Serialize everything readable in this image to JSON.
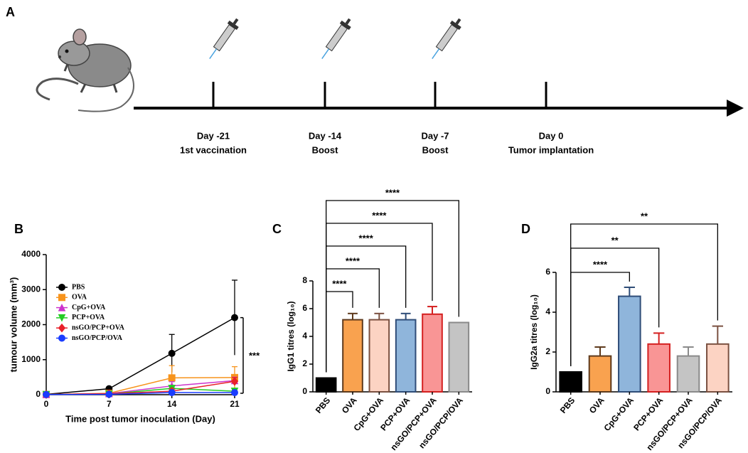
{
  "timeline": {
    "panel": "A",
    "events": [
      {
        "day": "Day -21",
        "label": "1st vaccination"
      },
      {
        "day": "Day -14",
        "label": "Boost"
      },
      {
        "day": "Day -7",
        "label": "Boost"
      },
      {
        "day": "Day 0",
        "label": "Tumor implantation"
      }
    ]
  },
  "chart_data": [
    {
      "type": "line",
      "panel": "B",
      "x_label": "Time post tumor inoculation (Day)",
      "y_label": "tumour volume (mm³)",
      "x": [
        0,
        7,
        14,
        21
      ],
      "xlim": [
        0,
        21
      ],
      "xticks": [
        0,
        7,
        14,
        21
      ],
      "ylim": [
        0,
        4000
      ],
      "yticks": [
        0,
        1000,
        2000,
        3000,
        4000
      ],
      "legend": "upper left",
      "annotation": "***",
      "series": [
        {
          "name": "PBS",
          "color": "#000000",
          "marker": "circle",
          "values": [
            10,
            170,
            1180,
            2200
          ],
          "errors": [
            0,
            0,
            540,
            1070
          ]
        },
        {
          "name": "OVA",
          "color": "#f7941d",
          "marker": "square",
          "values": [
            5,
            40,
            480,
            490
          ],
          "errors": [
            0,
            0,
            350,
            310
          ]
        },
        {
          "name": "CpG+OVA",
          "color": "#cc33cc",
          "marker": "triangle-up",
          "values": [
            5,
            30,
            250,
            400
          ],
          "errors": [
            0,
            0,
            120,
            100
          ]
        },
        {
          "name": "PCP+OVA",
          "color": "#22cc22",
          "marker": "triangle-down",
          "values": [
            5,
            20,
            180,
            100
          ],
          "errors": [
            0,
            0,
            60,
            40
          ]
        },
        {
          "name": "nsGO/PCP+OVA",
          "color": "#e8202a",
          "marker": "diamond",
          "values": [
            5,
            30,
            100,
            380
          ],
          "errors": [
            0,
            0,
            60,
            110
          ]
        },
        {
          "name": "nsGO/PCP/OVA",
          "color": "#1a3cff",
          "marker": "circle",
          "values": [
            5,
            10,
            60,
            60
          ],
          "errors": [
            0,
            0,
            30,
            30
          ]
        }
      ]
    },
    {
      "type": "bar",
      "panel": "C",
      "y_label": "IgG1 titres (log₁₀)",
      "categories": [
        "PBS",
        "OVA",
        "CpG+OVA",
        "PCP+OVA",
        "nsGO/PCP+OVA",
        "nsGO/PCP/OVA"
      ],
      "values": [
        1,
        5.2,
        5.2,
        5.2,
        5.6,
        5.0
      ],
      "errors": [
        0,
        0.45,
        0.45,
        0.45,
        0.55,
        0
      ],
      "colors": [
        "#000000",
        "#f9a24f",
        "#fcd3c3",
        "#8fb5db",
        "#f99595",
        "#c4c4c4"
      ],
      "edge_colors": [
        "#000000",
        "#5e3a1c",
        "#7a5040",
        "#2f4d78",
        "#d42020",
        "#8a8a8a"
      ],
      "ylim": [
        0,
        8
      ],
      "yticks": [
        0,
        2,
        4,
        6,
        8
      ],
      "comparisons": [
        {
          "from": "PBS",
          "to": "OVA",
          "label": "****"
        },
        {
          "from": "PBS",
          "to": "CpG+OVA",
          "label": "****"
        },
        {
          "from": "PBS",
          "to": "PCP+OVA",
          "label": "****"
        },
        {
          "from": "PBS",
          "to": "nsGO/PCP+OVA",
          "label": "****"
        },
        {
          "from": "PBS",
          "to": "nsGO/PCP/OVA",
          "label": "****"
        }
      ]
    },
    {
      "type": "bar",
      "panel": "D",
      "y_label": "IgG2a titres (log₁₀)",
      "categories": [
        "PBS",
        "OVA",
        "CpG+OVA",
        "PCP+OVA",
        "nsGO/PCP+OVA",
        "nsGO/PCP/OVA"
      ],
      "values": [
        1,
        1.8,
        4.8,
        2.4,
        1.8,
        2.4
      ],
      "errors": [
        0,
        0.45,
        0.45,
        0.55,
        0.45,
        0.9
      ],
      "colors": [
        "#000000",
        "#f9a24f",
        "#8fb5db",
        "#f99595",
        "#c4c4c4",
        "#fcd3c3"
      ],
      "edge_colors": [
        "#000000",
        "#5e3a1c",
        "#2f4d78",
        "#d42020",
        "#8a8a8a",
        "#7a5040"
      ],
      "ylim": [
        0,
        6
      ],
      "yticks": [
        0,
        2,
        4,
        6
      ],
      "comparisons": [
        {
          "from": "PBS",
          "to": "CpG+OVA",
          "label": "****"
        },
        {
          "from": "PBS",
          "to": "PCP+OVA",
          "label": "**"
        },
        {
          "from": "PBS",
          "to": "nsGO/PCP/OVA",
          "label": "**"
        }
      ]
    }
  ]
}
